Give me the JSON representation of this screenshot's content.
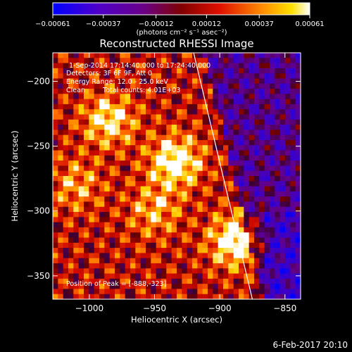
{
  "chart_data": {
    "type": "heatmap",
    "title": "Reconstructed RHESSI Image",
    "xlabel": "Heliocentric X (arcsec)",
    "ylabel": "Heliocentric Y (arcsec)",
    "xlim": [
      -1028,
      -838
    ],
    "ylim": [
      -368,
      -178
    ],
    "x_ticks": [
      -1000,
      -950,
      -900,
      -850
    ],
    "y_ticks": [
      -200,
      -250,
      -300,
      -350
    ],
    "x_tick_labels": [
      "−1000",
      "−950",
      "−900",
      "−850"
    ],
    "y_tick_labels": [
      "−200",
      "−250",
      "−300",
      "−350"
    ],
    "colorbar": {
      "range": [
        -0.00061,
        0.00061
      ],
      "ticks": [
        -0.00061,
        -0.00037,
        -0.00012,
        0.00012,
        0.00037,
        0.00061
      ],
      "tick_labels": [
        "−0.00061",
        "−0.00037",
        "−0.00012",
        "0.00012",
        "0.00037",
        "0.00061"
      ],
      "unit_label": "(photons cm⁻² s⁻¹ asec⁻²)",
      "colors": [
        "#0000ff",
        "#6a00b0",
        "#7a0000",
        "#d20000",
        "#ff5a00",
        "#ffd000",
        "#ffffff"
      ]
    },
    "annotations": {
      "time_range": "1-Sep-2014 17:14:40.000 to 17:24:40.000",
      "detectors": "Detectors: 3F 6F 9F, Att 0",
      "energy": "Energy Range: 12.0 - 25.0 keV",
      "method": "Clean",
      "total_counts": "Total counts: 4.01E+03",
      "peak": "Position of Peak = [-888,-323]"
    },
    "peak_position": [
      -888,
      -323
    ],
    "sources": [
      {
        "x": -934,
        "y": -262,
        "peak": 1.0
      },
      {
        "x": -985,
        "y": -230,
        "peak": 0.8
      },
      {
        "x": -888,
        "y": -323,
        "peak": 1.0
      },
      {
        "x": -950,
        "y": -300,
        "peak": 0.55
      },
      {
        "x": -1010,
        "y": -280,
        "peak": 0.5
      }
    ],
    "limb_line": {
      "x_top": -920,
      "y_top": -178,
      "x_bottom": -875,
      "y_bottom": -368
    }
  },
  "footer": {
    "date": "6-Feb-2017 20:10"
  }
}
